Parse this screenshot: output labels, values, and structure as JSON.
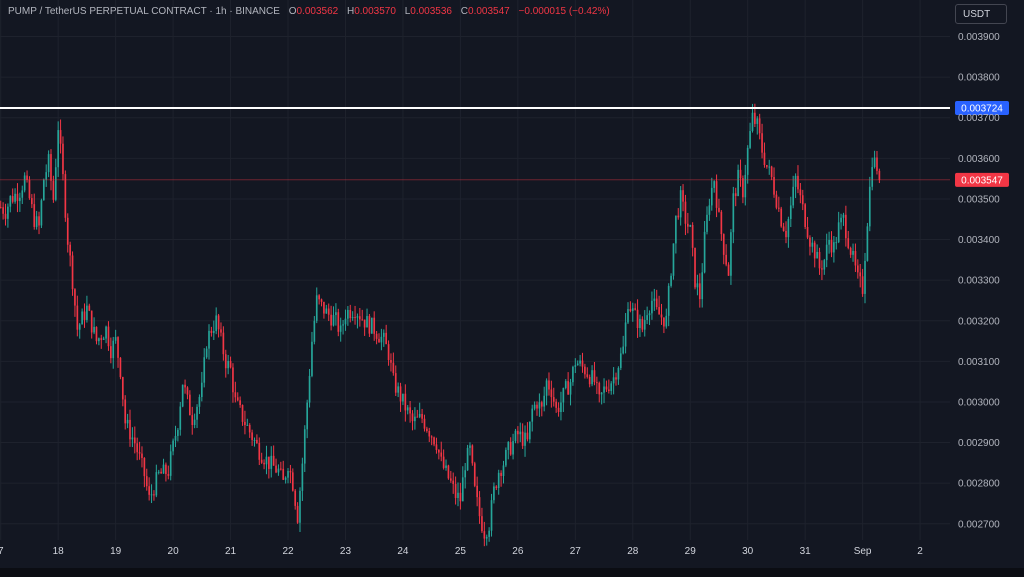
{
  "header": {
    "symbol": "PUMP / TetherUS PERPETUAL CONTRACT · 1h · BINANCE",
    "o_label": "O",
    "o_value": "0.003562",
    "h_label": "H",
    "h_value": "0.003570",
    "l_label": "L",
    "l_value": "0.003536",
    "c_label": "C",
    "c_value": "0.003547",
    "change": "−0.000015 (−0.42%)"
  },
  "currency_button": "USDT",
  "colors": {
    "background": "#131722",
    "up": "#26a69a",
    "down": "#f23645",
    "grid": "#1e222d",
    "level_line": "#ffffff",
    "level_badge": "#2962ff",
    "price_badge": "#f23645"
  },
  "chart_data": {
    "type": "candlestick",
    "ylim": [
      0.00266,
      0.00399
    ],
    "y_ticks": [
      "0.002700",
      "0.002800",
      "0.002900",
      "0.003000",
      "0.003100",
      "0.003200",
      "0.003300",
      "0.003400",
      "0.003500",
      "0.003600",
      "0.003700",
      "0.003800",
      "0.003900"
    ],
    "x_ticks": [
      "7",
      "18",
      "19",
      "20",
      "21",
      "22",
      "23",
      "24",
      "25",
      "26",
      "27",
      "28",
      "29",
      "30",
      "31",
      "Sep",
      "2"
    ],
    "x_tick_hours": [
      -12,
      12,
      36,
      60,
      84,
      108,
      132,
      156,
      180,
      204,
      228,
      252,
      276,
      300,
      324,
      348,
      372
    ],
    "hours_range": [
      -12.3,
      384.5
    ],
    "horizontal_level": {
      "value": 0.003724,
      "label": "0.003724"
    },
    "last_price": {
      "value": 0.003547,
      "label": "0.003547"
    },
    "close_path": [
      [
        -12,
        0.00348
      ],
      [
        -10,
        0.00347
      ],
      [
        -8,
        0.0035
      ],
      [
        -4,
        0.00352
      ],
      [
        -2,
        0.00355
      ],
      [
        2,
        0.00345
      ],
      [
        4,
        0.00343
      ],
      [
        6,
        0.00355
      ],
      [
        8,
        0.00359
      ],
      [
        10,
        0.0035
      ],
      [
        12,
        0.00368
      ],
      [
        14,
        0.00355
      ],
      [
        16,
        0.0034
      ],
      [
        18,
        0.0033
      ],
      [
        20,
        0.00318
      ],
      [
        24,
        0.00323
      ],
      [
        28,
        0.00315
      ],
      [
        32,
        0.00318
      ],
      [
        34,
        0.00313
      ],
      [
        36,
        0.00315
      ],
      [
        38,
        0.00308
      ],
      [
        40,
        0.00295
      ],
      [
        44,
        0.0029
      ],
      [
        48,
        0.00282
      ],
      [
        50,
        0.00276
      ],
      [
        54,
        0.00282
      ],
      [
        58,
        0.00283
      ],
      [
        62,
        0.00295
      ],
      [
        64,
        0.00305
      ],
      [
        66,
        0.003
      ],
      [
        68,
        0.00296
      ],
      [
        72,
        0.00303
      ],
      [
        74,
        0.00315
      ],
      [
        76,
        0.00318
      ],
      [
        78,
        0.0032
      ],
      [
        80,
        0.00315
      ],
      [
        82,
        0.0031
      ],
      [
        84,
        0.00308
      ],
      [
        86,
        0.003
      ],
      [
        90,
        0.00295
      ],
      [
        96,
        0.00288
      ],
      [
        100,
        0.00285
      ],
      [
        104,
        0.00283
      ],
      [
        106,
        0.0028
      ],
      [
        108,
        0.00285
      ],
      [
        110,
        0.0028
      ],
      [
        112,
        0.00272
      ],
      [
        114,
        0.00285
      ],
      [
        116,
        0.003
      ],
      [
        118,
        0.00315
      ],
      [
        120,
        0.00325
      ],
      [
        124,
        0.00322
      ],
      [
        128,
        0.0032
      ],
      [
        130,
        0.00317
      ],
      [
        132,
        0.00322
      ],
      [
        136,
        0.00323
      ],
      [
        140,
        0.0032
      ],
      [
        144,
        0.00318
      ],
      [
        148,
        0.00315
      ],
      [
        150,
        0.00312
      ],
      [
        152,
        0.00305
      ],
      [
        156,
        0.003
      ],
      [
        160,
        0.00295
      ],
      [
        164,
        0.00296
      ],
      [
        168,
        0.00292
      ],
      [
        170,
        0.0029
      ],
      [
        172,
        0.00285
      ],
      [
        176,
        0.0028
      ],
      [
        178,
        0.00277
      ],
      [
        180,
        0.00276
      ],
      [
        182,
        0.00285
      ],
      [
        184,
        0.00288
      ],
      [
        186,
        0.00278
      ],
      [
        188,
        0.00272
      ],
      [
        190,
        0.00268
      ],
      [
        192,
        0.0027
      ],
      [
        194,
        0.00278
      ],
      [
        196,
        0.00283
      ],
      [
        198,
        0.00285
      ],
      [
        200,
        0.00288
      ],
      [
        204,
        0.00292
      ],
      [
        208,
        0.0029
      ],
      [
        210,
        0.00298
      ],
      [
        212,
        0.003
      ],
      [
        214,
        0.00298
      ],
      [
        216,
        0.00305
      ],
      [
        218,
        0.00303
      ],
      [
        220,
        0.00298
      ],
      [
        222,
        0.003
      ],
      [
        224,
        0.00303
      ],
      [
        226,
        0.00305
      ],
      [
        228,
        0.0031
      ],
      [
        232,
        0.00308
      ],
      [
        236,
        0.00305
      ],
      [
        238,
        0.003
      ],
      [
        240,
        0.00303
      ],
      [
        244,
        0.00306
      ],
      [
        248,
        0.00313
      ],
      [
        250,
        0.00325
      ],
      [
        252,
        0.00322
      ],
      [
        254,
        0.0032
      ],
      [
        256,
        0.00318
      ],
      [
        258,
        0.00323
      ],
      [
        260,
        0.00325
      ],
      [
        262,
        0.00322
      ],
      [
        266,
        0.0032
      ],
      [
        268,
        0.00333
      ],
      [
        270,
        0.00345
      ],
      [
        272,
        0.0035
      ],
      [
        274,
        0.00345
      ],
      [
        276,
        0.00342
      ],
      [
        278,
        0.0033
      ],
      [
        280,
        0.00326
      ],
      [
        282,
        0.0034
      ],
      [
        284,
        0.0035
      ],
      [
        286,
        0.00355
      ],
      [
        288,
        0.00345
      ],
      [
        290,
        0.00338
      ],
      [
        292,
        0.00332
      ],
      [
        294,
        0.0035
      ],
      [
        296,
        0.00355
      ],
      [
        298,
        0.00352
      ],
      [
        300,
        0.00362
      ],
      [
        302,
        0.0037
      ],
      [
        304,
        0.00368
      ],
      [
        306,
        0.00362
      ],
      [
        308,
        0.00358
      ],
      [
        310,
        0.00355
      ],
      [
        312,
        0.0035
      ],
      [
        314,
        0.00345
      ],
      [
        316,
        0.00342
      ],
      [
        318,
        0.00348
      ],
      [
        320,
        0.00355
      ],
      [
        322,
        0.0035
      ],
      [
        324,
        0.00345
      ],
      [
        326,
        0.0034
      ],
      [
        328,
        0.00337
      ],
      [
        330,
        0.00333
      ],
      [
        332,
        0.00335
      ],
      [
        334,
        0.0034
      ],
      [
        336,
        0.00338
      ],
      [
        338,
        0.00343
      ],
      [
        340,
        0.00345
      ],
      [
        342,
        0.0034
      ],
      [
        344,
        0.00335
      ],
      [
        346,
        0.0033
      ],
      [
        348,
        0.00328
      ],
      [
        350,
        0.00345
      ],
      [
        352,
        0.0036
      ],
      [
        354,
        0.00358
      ],
      [
        355.5,
        0.003547
      ]
    ]
  }
}
